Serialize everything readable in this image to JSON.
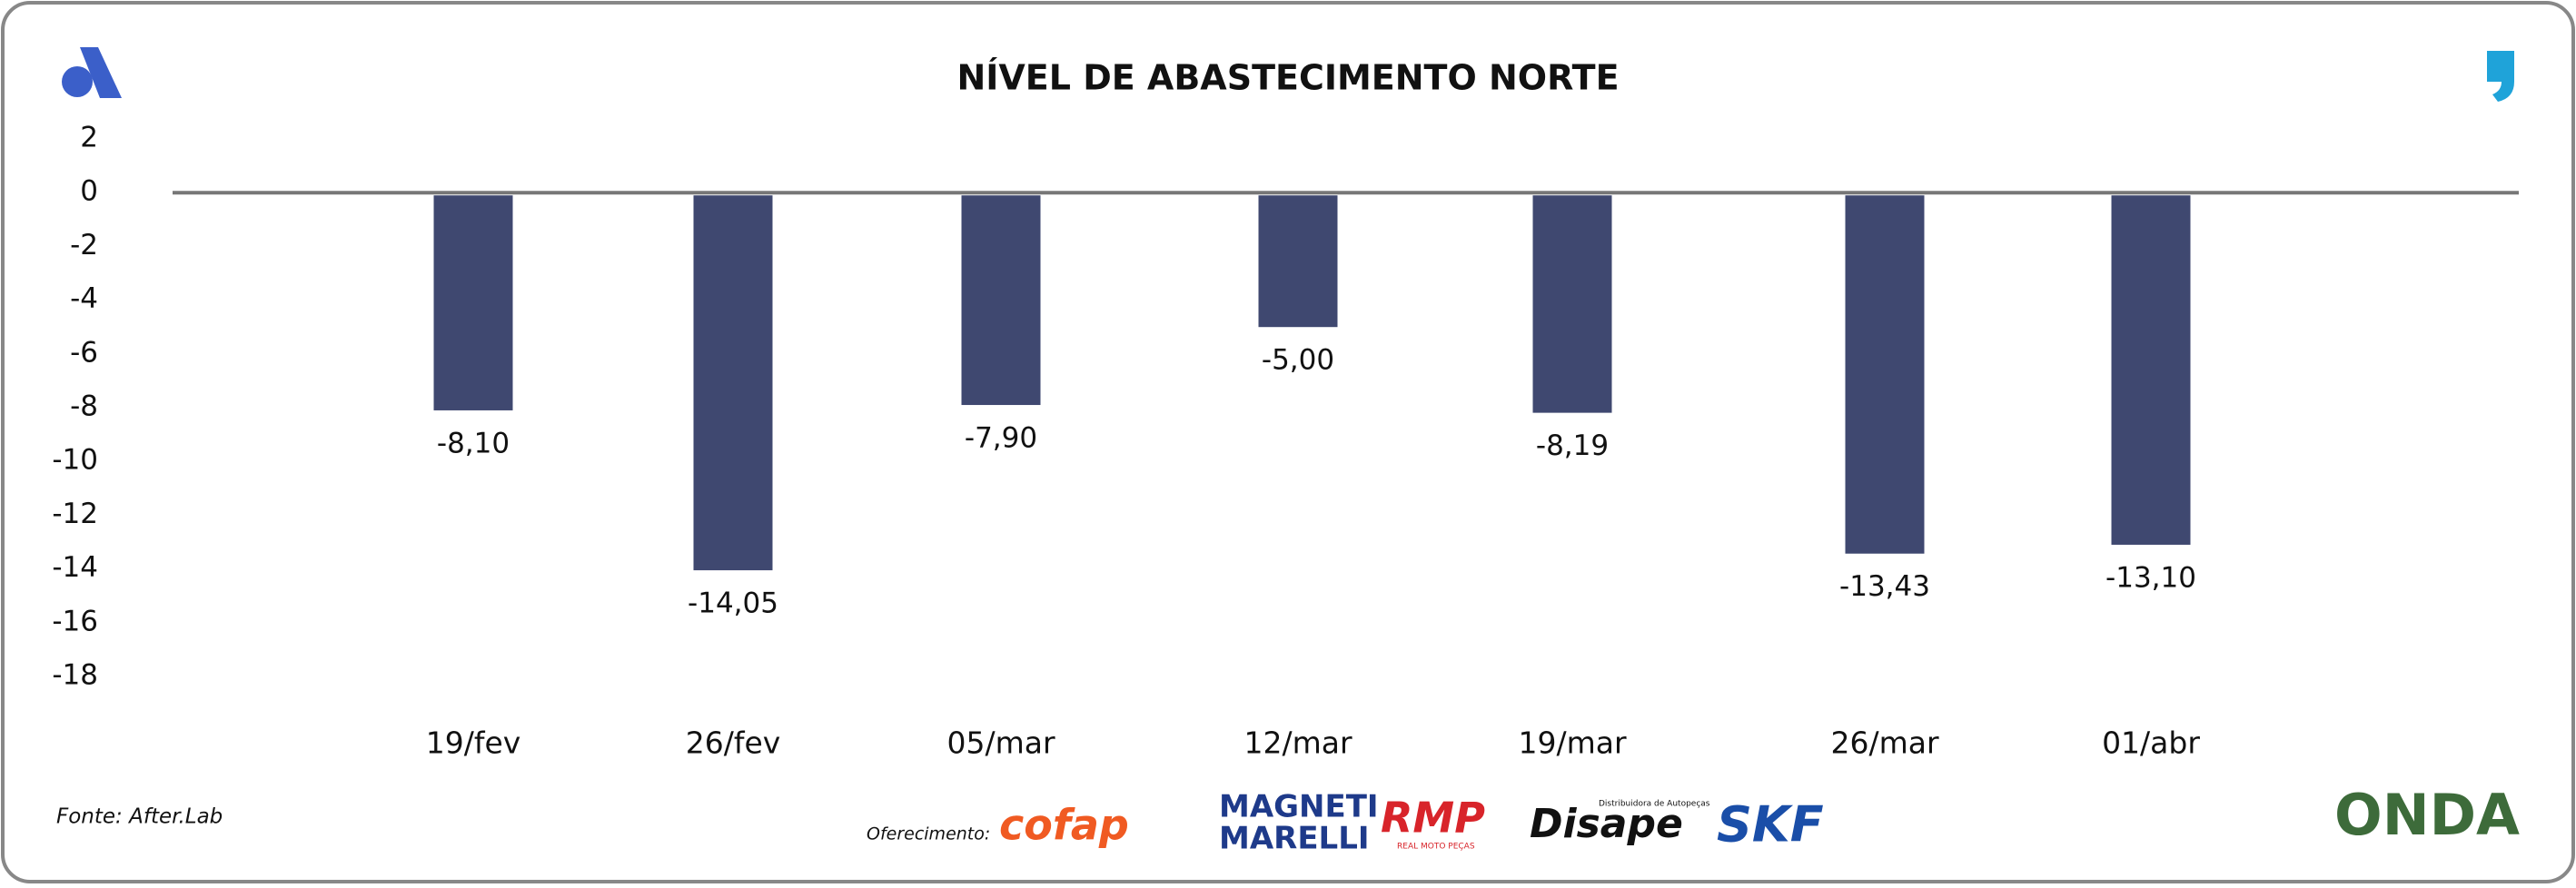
{
  "chart_data": {
    "type": "bar",
    "title": "NÍVEL DE ABASTECIMENTO NORTE",
    "categories": [
      "19/fev",
      "26/fev",
      "05/mar",
      "12/mar",
      "19/mar",
      "26/mar",
      "01/abr"
    ],
    "values": [
      -8.1,
      -14.05,
      -7.9,
      -5.0,
      -8.19,
      -13.43,
      -13.1
    ],
    "value_labels": [
      "-8,10",
      "-14,05",
      "-7,90",
      "-5,00",
      "-8,19",
      "-13,43",
      "-13,10"
    ],
    "color": "#3f4870",
    "ylim": [
      -18,
      2
    ],
    "yticks": [
      2,
      0,
      -2,
      -4,
      -6,
      -8,
      -10,
      -12,
      -14,
      -16,
      -18
    ],
    "grid": false
  },
  "footer": {
    "source": "Fonte: After.Lab",
    "sponsor_label": "Oferecimento:",
    "sponsors": [
      "cofap",
      "MAGNETI",
      "MARELLI",
      "RMP",
      "REAL MOTO PEÇAS",
      "Distribuidora de Autopeças",
      "Disape",
      "SKF",
      "ONDA"
    ]
  }
}
